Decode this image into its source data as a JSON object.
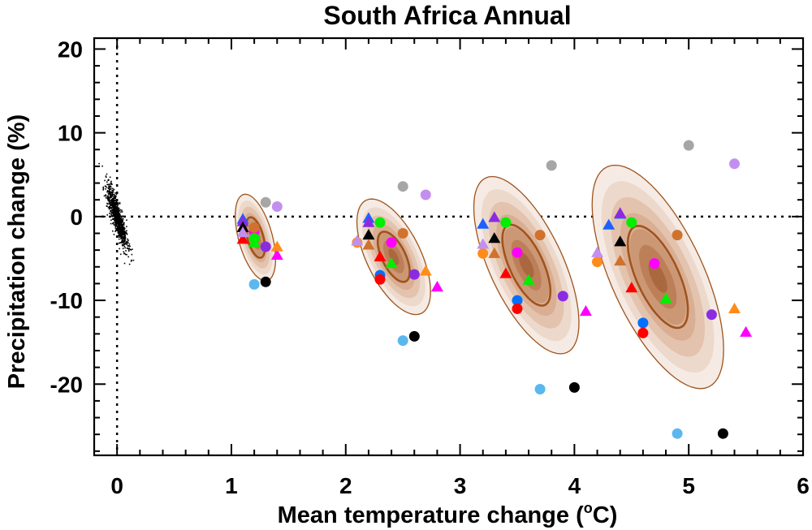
{
  "chart_data": {
    "type": "scatter",
    "title": "South Africa Annual",
    "xlabel": "Mean temperature change (",
    "xlabel_sup": "o",
    "xlabel_end": "C)",
    "ylabel": "Precipitation change (%)",
    "xlim": [
      -0.2,
      6.0
    ],
    "ylim": [
      -28.5,
      21.3
    ],
    "x_ticks": [
      0,
      1,
      2,
      3,
      4,
      5,
      6
    ],
    "y_ticks": [
      -20,
      -10,
      0,
      10,
      20
    ],
    "reference_lines": {
      "x": 0,
      "y": 0,
      "style": "dotted"
    },
    "noise_cloud": {
      "center": [
        0,
        0
      ],
      "x_sd": 0.045,
      "y_sd": 1.9,
      "correlation": -0.85,
      "color": "#000000"
    },
    "distributions": [
      {
        "center": [
          1.21,
          -2.5
        ],
        "sx": 0.075,
        "sy": 2.2,
        "corr": -0.5,
        "outer_scale": 2.35,
        "inner_scale": 1.1
      },
      {
        "center": [
          2.42,
          -4.8
        ],
        "sx": 0.14,
        "sy": 3.0,
        "corr": -0.6,
        "outer_scale": 2.3,
        "inner_scale": 1.0
      },
      {
        "center": [
          3.58,
          -5.8
        ],
        "sx": 0.2,
        "sy": 4.6,
        "corr": -0.65,
        "outer_scale": 2.3,
        "inner_scale": 1.05
      },
      {
        "center": [
          4.73,
          -7.2
        ],
        "sx": 0.25,
        "sy": 5.8,
        "corr": -0.65,
        "outer_scale": 2.3,
        "inner_scale": 1.05
      }
    ],
    "shading_colors": [
      "#f5ebe4",
      "#edd9cb",
      "#e3c3ad",
      "#d9ae93",
      "#cc9775",
      "#bd7f58",
      "#aa6840"
    ],
    "contour_color": "#a0531c",
    "series": [
      {
        "name": "gray",
        "marker": "circle",
        "color": "#a6a6a6",
        "points": [
          [
            1.3,
            1.7
          ],
          [
            2.5,
            3.6
          ],
          [
            3.8,
            6.1
          ],
          [
            5.0,
            8.5
          ]
        ]
      },
      {
        "name": "lavender",
        "marker": "circle",
        "color": "#c38fef",
        "points": [
          [
            1.4,
            1.2
          ],
          [
            2.7,
            2.6
          ],
          [
            5.4,
            6.3
          ]
        ]
      },
      {
        "name": "sky",
        "marker": "circle",
        "color": "#5ab8ef",
        "points": [
          [
            1.2,
            -8.1
          ],
          [
            2.5,
            -14.8
          ],
          [
            3.7,
            -20.6
          ],
          [
            4.9,
            -25.9
          ]
        ]
      },
      {
        "name": "black",
        "marker": "circle",
        "color": "#000000",
        "points": [
          [
            1.3,
            -7.8
          ],
          [
            2.6,
            -14.3
          ],
          [
            4.0,
            -20.4
          ],
          [
            5.3,
            -25.9
          ]
        ]
      },
      {
        "name": "purple",
        "marker": "circle",
        "color": "#8a2be2",
        "points": [
          [
            1.3,
            -3.6
          ],
          [
            2.6,
            -6.9
          ],
          [
            3.9,
            -9.5
          ],
          [
            5.2,
            -11.7
          ]
        ]
      },
      {
        "name": "magenta",
        "marker": "circle",
        "color": "#ff00ff",
        "points": [
          [
            1.2,
            -1.8
          ],
          [
            2.4,
            -3.1
          ],
          [
            3.5,
            -4.3
          ],
          [
            4.7,
            -5.6
          ]
        ]
      },
      {
        "name": "brown",
        "marker": "circle",
        "color": "#d0722d",
        "points": [
          [
            1.2,
            -1.3
          ],
          [
            2.5,
            -2.0
          ],
          [
            3.7,
            -2.2
          ],
          [
            4.9,
            -2.2
          ]
        ]
      },
      {
        "name": "lime",
        "marker": "circle",
        "color": "#00ee00",
        "points": [
          [
            1.2,
            -2.6
          ],
          [
            2.3,
            -0.7
          ],
          [
            3.4,
            -0.7
          ],
          [
            4.5,
            -0.7
          ]
        ]
      },
      {
        "name": "blue",
        "marker": "circle",
        "color": "#0070ff",
        "points": [
          [
            2.3,
            -7.0
          ],
          [
            3.5,
            -10.0
          ],
          [
            4.6,
            -12.7
          ]
        ]
      },
      {
        "name": "red",
        "marker": "circle",
        "color": "#ff0000",
        "points": [
          [
            2.3,
            -7.5
          ],
          [
            3.5,
            -11.0
          ],
          [
            4.6,
            -13.9
          ]
        ]
      },
      {
        "name": "orange",
        "marker": "circle",
        "color": "#ff8c1a",
        "points": [
          [
            2.1,
            -3.1
          ],
          [
            3.2,
            -4.4
          ],
          [
            4.2,
            -5.4
          ]
        ]
      },
      {
        "name": "tri-blue",
        "marker": "triangle",
        "color": "#1e60ff",
        "points": [
          [
            1.1,
            -0.3
          ],
          [
            2.2,
            -0.2
          ],
          [
            3.2,
            -0.9
          ],
          [
            4.3,
            -1.0
          ],
          [
            4.4,
            0.3
          ]
        ]
      },
      {
        "name": "tri-purple",
        "marker": "triangle",
        "color": "#8a2be2",
        "points": [
          [
            1.1,
            -0.6
          ],
          [
            2.2,
            -0.7
          ],
          [
            3.3,
            -0.1
          ],
          [
            4.4,
            0.4
          ]
        ]
      },
      {
        "name": "tri-black",
        "marker": "triangle",
        "color": "#000000",
        "points": [
          [
            1.1,
            -1.3
          ],
          [
            2.2,
            -2.2
          ],
          [
            3.3,
            -2.6
          ],
          [
            4.4,
            -3.0
          ]
        ]
      },
      {
        "name": "tri-red",
        "marker": "triangle",
        "color": "#ff0000",
        "points": [
          [
            1.1,
            -2.7
          ],
          [
            2.3,
            -4.8
          ],
          [
            3.4,
            -6.8
          ],
          [
            4.5,
            -8.5
          ]
        ]
      },
      {
        "name": "tri-green",
        "marker": "triangle",
        "color": "#00ee00",
        "points": [
          [
            1.2,
            -3.1
          ],
          [
            2.4,
            -5.6
          ],
          [
            3.6,
            -7.6
          ],
          [
            4.8,
            -9.8
          ]
        ]
      },
      {
        "name": "tri-magenta",
        "marker": "triangle",
        "color": "#ff00ff",
        "points": [
          [
            1.4,
            -4.6
          ],
          [
            2.8,
            -8.4
          ],
          [
            4.1,
            -11.3
          ],
          [
            5.5,
            -13.8
          ]
        ]
      },
      {
        "name": "tri-orange",
        "marker": "triangle",
        "color": "#ff8c1a",
        "points": [
          [
            1.4,
            -3.6
          ],
          [
            2.7,
            -6.5
          ],
          [
            5.4,
            -11.0
          ]
        ]
      },
      {
        "name": "tri-lavender",
        "marker": "triangle",
        "color": "#c38fef",
        "points": [
          [
            1.1,
            -1.9
          ],
          [
            2.1,
            -2.9
          ],
          [
            3.2,
            -3.3
          ],
          [
            4.2,
            -4.3
          ]
        ]
      },
      {
        "name": "tri-brown",
        "marker": "triangle",
        "color": "#d0722d",
        "points": [
          [
            2.2,
            -3.4
          ],
          [
            3.3,
            -4.4
          ],
          [
            4.4,
            -5.3
          ]
        ]
      }
    ]
  }
}
